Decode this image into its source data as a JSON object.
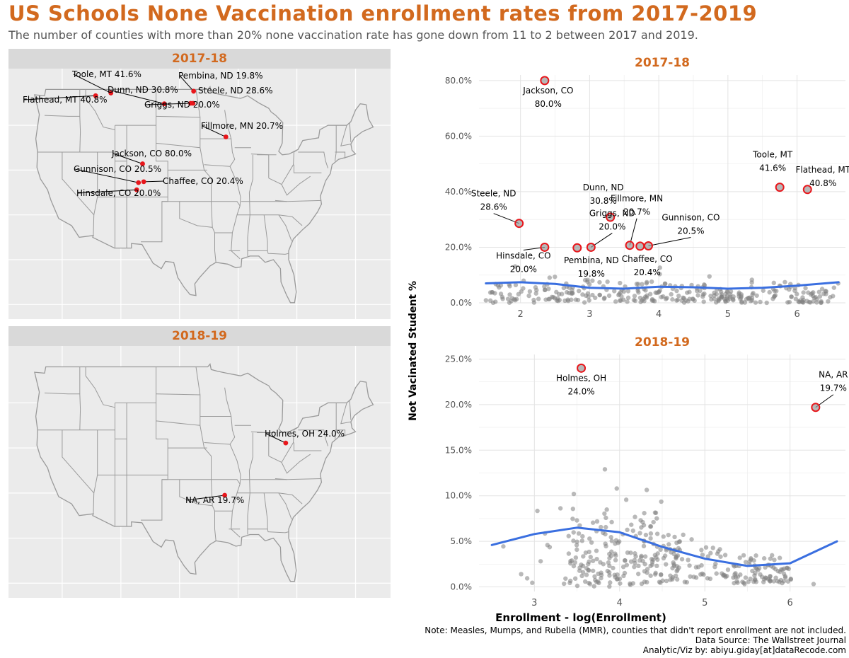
{
  "header": {
    "title": "US Schools None Vaccination enrollment rates from 2017-2019",
    "subtitle": "The number of counties with more than 20% none vaccination rate has gone down from 11 to 2 between 2017 and 2019."
  },
  "colors": {
    "accent": "#d2691e",
    "highlight": "#e8161b",
    "trend": "#3a6fe0",
    "points": "#7f7f7f",
    "panel_bg": "#ebebeb",
    "strip_bg": "#d9d9d9"
  },
  "maps": [
    {
      "title": "2017-18",
      "icon": "us-map-icon",
      "counties": [
        {
          "label": "Toole, MT 41.6%",
          "lon": -111.7,
          "lat": 48.6
        },
        {
          "label": "Flathead, MT 40.8%",
          "lon": -114.3,
          "lat": 48.3
        },
        {
          "label": "Dunn, ND 30.8%",
          "lon": -102.6,
          "lat": 47.4
        },
        {
          "label": "Pembina, ND 19.8%",
          "lon": -97.6,
          "lat": 48.8
        },
        {
          "label": "Steele, ND 28.6%",
          "lon": -97.7,
          "lat": 47.45
        },
        {
          "label": "Griggs, ND 20.0%",
          "lon": -98.1,
          "lat": 47.45
        },
        {
          "label": "Fillmore, MN 20.7%",
          "lon": -92.1,
          "lat": 43.7
        },
        {
          "label": "Jackson, CO 80.0%",
          "lon": -106.3,
          "lat": 40.7
        },
        {
          "label": "Gunnison, CO 20.5%",
          "lon": -107.0,
          "lat": 38.6
        },
        {
          "label": "Chaffee, CO 20.4%",
          "lon": -106.1,
          "lat": 38.7
        },
        {
          "label": "Hinsdale, CO 20.0%",
          "lon": -107.3,
          "lat": 37.8
        }
      ]
    },
    {
      "title": "2018-19",
      "icon": "us-map-icon",
      "counties": [
        {
          "label": "Holmes, OH 24.0%",
          "lon": -81.9,
          "lat": 40.55
        },
        {
          "label": "NA, AR 19.7%",
          "lon": -92.3,
          "lat": 34.75
        }
      ]
    }
  ],
  "chart_data": [
    {
      "type": "scatter",
      "title": "2017-18",
      "xlabel": "Enrollment - log(Enrollment)",
      "ylabel": "Not Vacinated Student %",
      "xlim": [
        1.4,
        6.7
      ],
      "ylim": [
        0,
        82
      ],
      "x_ticks": [
        2,
        3,
        4,
        5,
        6
      ],
      "y_ticks": [
        0,
        20,
        40,
        60,
        80
      ],
      "y_tick_labels": [
        "0.0%",
        "20.0%",
        "40.0%",
        "60.0%",
        "80.0%"
      ],
      "grid": true,
      "highlighted": [
        {
          "name": "Jackson, CO",
          "value": "80.0%",
          "x": 2.35,
          "y": 80.0
        },
        {
          "name": "Toole, MT",
          "value": "41.6%",
          "x": 5.75,
          "y": 41.6
        },
        {
          "name": "Flathead, MT",
          "value": "40.8%",
          "x": 6.15,
          "y": 40.8
        },
        {
          "name": "Dunn, ND",
          "value": "30.8%",
          "x": 3.3,
          "y": 30.8
        },
        {
          "name": "Steele, ND",
          "value": "28.6%",
          "x": 1.98,
          "y": 28.6
        },
        {
          "name": "Fillmore, MN",
          "value": "20.7%",
          "x": 3.58,
          "y": 20.7
        },
        {
          "name": "Gunnison, CO",
          "value": "20.5%",
          "x": 3.85,
          "y": 20.5
        },
        {
          "name": "Chaffee, CO",
          "value": "20.4%",
          "x": 3.73,
          "y": 20.4
        },
        {
          "name": "Griggs, ND",
          "value": "20.0%",
          "x": 3.02,
          "y": 20.0
        },
        {
          "name": "Hinsdale, CO",
          "value": "20.0%",
          "x": 2.35,
          "y": 20.0
        },
        {
          "name": "Pembina, ND",
          "value": "19.8%",
          "x": 2.82,
          "y": 19.8
        }
      ],
      "trend": [
        [
          1.5,
          7.0
        ],
        [
          2.0,
          7.4
        ],
        [
          2.5,
          6.8
        ],
        [
          3.0,
          5.4
        ],
        [
          3.5,
          5.1
        ],
        [
          4.0,
          5.8
        ],
        [
          4.5,
          5.6
        ],
        [
          5.0,
          5.1
        ],
        [
          5.5,
          5.4
        ],
        [
          6.0,
          6.2
        ],
        [
          6.6,
          7.4
        ]
      ]
    },
    {
      "type": "scatter",
      "title": "2018-19",
      "xlabel": "Enrollment - log(Enrollment)",
      "ylabel": "Not Vacinated Student %",
      "xlim": [
        2.35,
        6.65
      ],
      "ylim": [
        -0.5,
        25.5
      ],
      "x_ticks": [
        3,
        4,
        5,
        6
      ],
      "y_ticks": [
        0,
        5,
        10,
        15,
        20,
        25
      ],
      "y_tick_labels": [
        "0.0%",
        "5.0%",
        "10.0%",
        "15.0%",
        "20.0%",
        "25.0%"
      ],
      "grid": true,
      "highlighted": [
        {
          "name": "Holmes, OH",
          "value": "24.0%",
          "x": 3.55,
          "y": 24.0
        },
        {
          "name": "NA, AR",
          "value": "19.7%",
          "x": 6.3,
          "y": 19.7
        }
      ],
      "trend": [
        [
          2.5,
          4.6
        ],
        [
          3.0,
          5.8
        ],
        [
          3.5,
          6.5
        ],
        [
          4.0,
          6.0
        ],
        [
          4.5,
          4.4
        ],
        [
          5.0,
          3.1
        ],
        [
          5.5,
          2.3
        ],
        [
          6.0,
          2.6
        ],
        [
          6.55,
          5.0
        ]
      ]
    }
  ],
  "footer": {
    "note": "Note: Measles, Mumps, and Rubella (MMR), counties that didn't report enrollment are not included.",
    "source": "Data Source: The Wallstreet Journal",
    "credit": "Analytic/Viz by: abiyu.giday[at]dataRecode.com"
  }
}
